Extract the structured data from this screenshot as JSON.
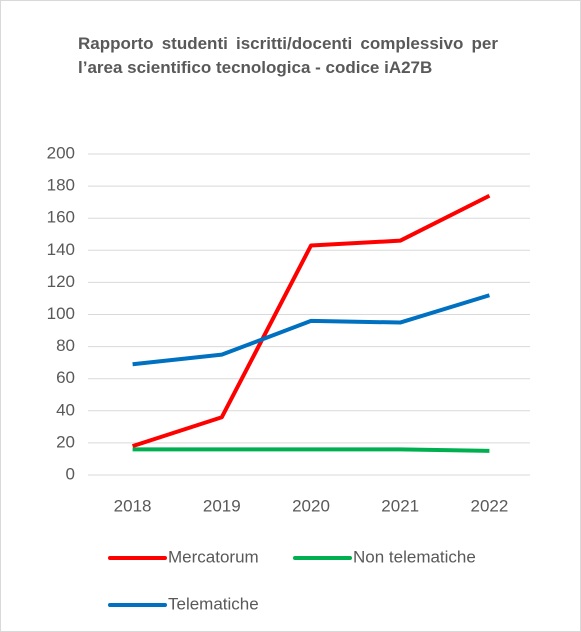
{
  "chart_data": {
    "type": "line",
    "title": "Rapporto studenti iscritti/docenti complessivo per l’area scientifico tecnologica - codice iA27B",
    "categories": [
      "2018",
      "2019",
      "2020",
      "2021",
      "2022"
    ],
    "series": [
      {
        "name": "Mercatorum",
        "color": "#ff0000",
        "values": [
          18,
          36,
          143,
          146,
          174
        ]
      },
      {
        "name": "Non telematiche",
        "color": "#00b050",
        "values": [
          16,
          16,
          16,
          16,
          15
        ]
      },
      {
        "name": "Telematiche",
        "color": "#0070c0",
        "values": [
          69,
          75,
          96,
          95,
          112
        ]
      }
    ],
    "ylim": [
      0,
      200
    ],
    "yticks": [
      0,
      20,
      40,
      60,
      80,
      100,
      120,
      140,
      160,
      180,
      200
    ],
    "grid": true,
    "legend": "bottom"
  }
}
